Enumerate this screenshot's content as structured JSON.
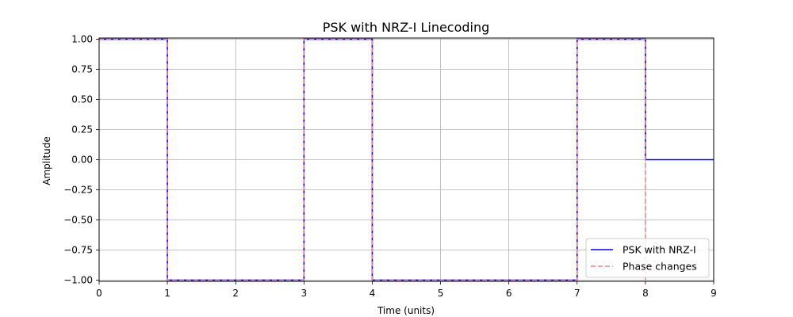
{
  "chart_data": {
    "type": "line",
    "title": "PSK with NRZ-I Linecoding",
    "xlabel": "Time (units)",
    "ylabel": "Amplitude",
    "xlim": [
      0,
      9
    ],
    "ylim": [
      -1.0,
      1.0
    ],
    "xticks": [
      0,
      1,
      2,
      3,
      4,
      5,
      6,
      7,
      8,
      9
    ],
    "yticks": [
      1.0,
      0.75,
      0.5,
      0.25,
      0.0,
      -0.25,
      -0.5,
      -0.75,
      -1.0
    ],
    "xtick_labels": [
      "0",
      "1",
      "2",
      "3",
      "4",
      "5",
      "6",
      "7",
      "8",
      "9"
    ],
    "ytick_labels": [
      "1.00",
      "0.75",
      "0.50",
      "0.25",
      "0.00",
      "−0.25",
      "−0.50",
      "−0.75",
      "−1.00"
    ],
    "grid": true,
    "legend_position": "bottom-right",
    "series": [
      {
        "name": "PSK with NRZ-I",
        "style": "solid",
        "color": "#0000ff",
        "x": [
          0,
          1,
          1,
          3,
          3,
          4,
          4,
          7,
          7,
          8,
          8,
          9
        ],
        "y": [
          1,
          1,
          -1,
          -1,
          1,
          1,
          -1,
          -1,
          1,
          1,
          0,
          0
        ]
      },
      {
        "name": "Phase changes",
        "style": "dashed",
        "color": "#f08080",
        "x": [
          0,
          1,
          1,
          3,
          3,
          4,
          4,
          7,
          7,
          8,
          8
        ],
        "y": [
          1,
          1,
          -1,
          -1,
          1,
          1,
          -1,
          -1,
          1,
          1,
          -1
        ]
      }
    ]
  }
}
